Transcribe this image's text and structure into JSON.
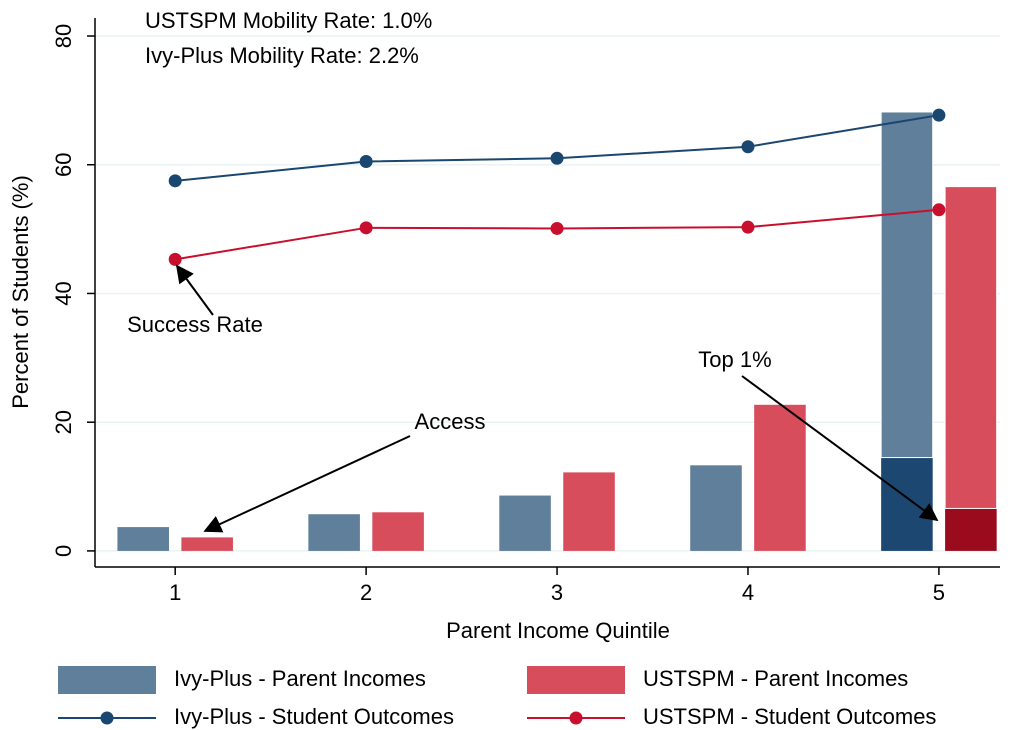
{
  "chart_data": {
    "type": "combo",
    "x_label": "Parent Income Quintile",
    "y_label": "Percent of Students (%)",
    "x": [
      1,
      2,
      3,
      4,
      5
    ],
    "xlim": [
      0.58,
      5.32
    ],
    "xticks": [
      1,
      2,
      3,
      4,
      5
    ],
    "ylim": [
      -2.5,
      82.8
    ],
    "yticks": [
      0,
      20,
      40,
      60,
      80
    ],
    "grid": true,
    "legend": "bottom",
    "annotations": [
      "USTSPM Mobility Rate:  1.0%",
      "Ivy-Plus Mobility Rate:   2.2%",
      "Success Rate",
      "Access",
      "Top 1%"
    ],
    "series": [
      {
        "name": "Ivy-Plus - Parent Incomes",
        "type": "bar",
        "color": "#5f7f9b",
        "top1_color": "#1b4770",
        "values": [
          3.7,
          5.7,
          8.6,
          13.3,
          53.7
        ],
        "top1_values": [
          null,
          null,
          null,
          null,
          14.5
        ]
      },
      {
        "name": "USTSPM - Parent Incomes",
        "type": "bar",
        "color": "#d84d5b",
        "top1_color": "#9a0b1e",
        "values": [
          2.1,
          6.0,
          12.2,
          22.7,
          50.0
        ],
        "top1_values": [
          null,
          null,
          null,
          null,
          6.6
        ]
      },
      {
        "name": "Ivy-Plus - Student Outcomes",
        "type": "line",
        "color": "#1a476f",
        "values": [
          57.5,
          60.5,
          61.0,
          62.8,
          67.7
        ]
      },
      {
        "name": "USTSPM - Student Outcomes",
        "type": "line",
        "color": "#c8102e",
        "values": [
          45.3,
          50.2,
          50.1,
          50.3,
          53.0
        ]
      }
    ]
  }
}
